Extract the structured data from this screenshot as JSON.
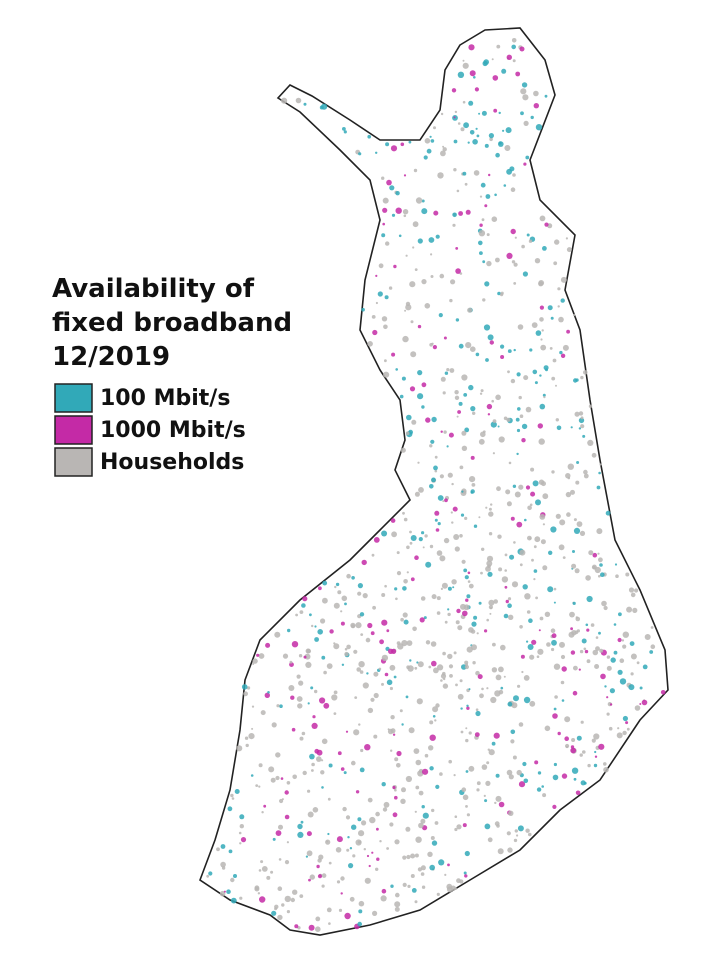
{
  "map": {
    "title_lines": [
      "Availability of",
      "fixed broadband",
      "12/2019"
    ],
    "legend": [
      {
        "label": "100 Mbit/s",
        "color": "#31a9b8"
      },
      {
        "label": "1000 Mbit/s",
        "color": "#c42aa6"
      },
      {
        "label": "Households",
        "color": "#b9b6b4"
      }
    ]
  }
}
